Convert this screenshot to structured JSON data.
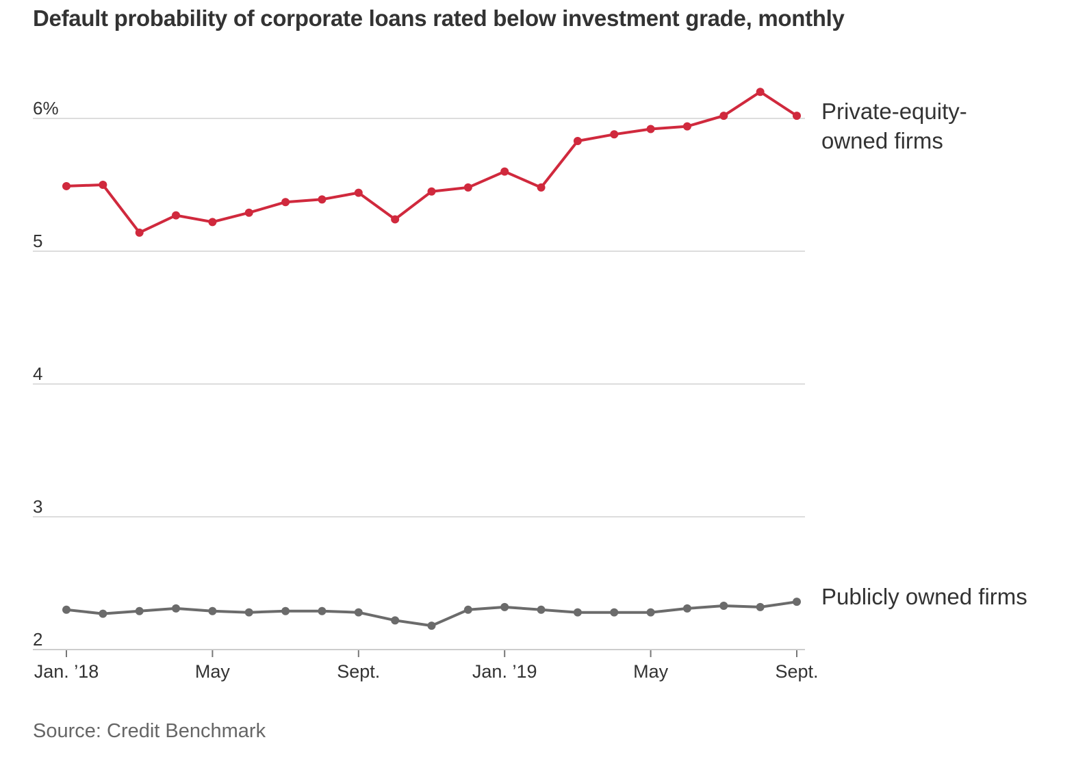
{
  "chart_data": {
    "type": "line",
    "title": "Default probability of corporate loans rated below investment grade, monthly",
    "source": "Source: Credit Benchmark",
    "xlabel": "",
    "ylabel": "",
    "x": [
      "2018-01",
      "2018-02",
      "2018-03",
      "2018-04",
      "2018-05",
      "2018-06",
      "2018-07",
      "2018-08",
      "2018-09",
      "2018-10",
      "2018-11",
      "2018-12",
      "2019-01",
      "2019-02",
      "2019-03",
      "2019-04",
      "2019-05",
      "2019-06",
      "2019-07",
      "2019-08",
      "2019-09"
    ],
    "x_ticks": [
      {
        "x": "2018-01",
        "label": "Jan. ’18"
      },
      {
        "x": "2018-05",
        "label": "May"
      },
      {
        "x": "2018-09",
        "label": "Sept."
      },
      {
        "x": "2019-01",
        "label": "Jan. ’19"
      },
      {
        "x": "2019-05",
        "label": "May"
      },
      {
        "x": "2019-09",
        "label": "Sept."
      }
    ],
    "y_ticks": [
      {
        "value": 6,
        "label": "6%"
      },
      {
        "value": 5,
        "label": "5"
      },
      {
        "value": 4,
        "label": "4"
      },
      {
        "value": 3,
        "label": "3"
      },
      {
        "value": 2,
        "label": "2"
      }
    ],
    "ylim": [
      2,
      6.2
    ],
    "grid": true,
    "series": [
      {
        "label_lines": [
          "Private-equity-",
          "owned firms"
        ],
        "color": "#d0293d",
        "values": [
          5.49,
          5.5,
          5.14,
          5.27,
          5.22,
          5.29,
          5.37,
          5.39,
          5.44,
          5.24,
          5.45,
          5.48,
          5.6,
          5.48,
          5.83,
          5.88,
          5.92,
          5.94,
          6.02,
          6.2,
          6.02
        ]
      },
      {
        "label_lines": [
          "Publicly owned firms"
        ],
        "color": "#6b6b6b",
        "values": [
          2.3,
          2.27,
          2.29,
          2.31,
          2.29,
          2.28,
          2.29,
          2.29,
          2.28,
          2.22,
          2.18,
          2.3,
          2.32,
          2.3,
          2.28,
          2.28,
          2.28,
          2.31,
          2.33,
          2.32,
          2.36
        ]
      }
    ]
  }
}
